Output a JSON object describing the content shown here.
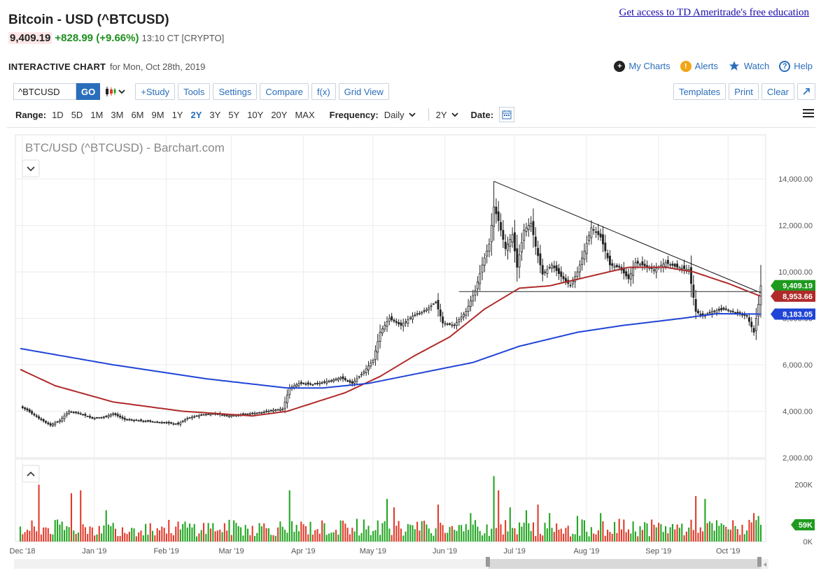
{
  "header": {
    "title": "Bitcoin - USD (^BTCUSD)",
    "promo_link": "Get access to TD Ameritrade's free education",
    "last": "9,409.19",
    "change": "+828.99 (+9.66%)",
    "time_meta": "13:10 CT [CRYPTO]",
    "chart_label": "INTERACTIVE CHART",
    "chart_date": "for Mon, Oct 28th, 2019"
  },
  "top_links": {
    "my_charts": "My Charts",
    "alerts": "Alerts",
    "watch": "Watch",
    "help": "Help"
  },
  "toolbar": {
    "symbol_value": "^BTCUSD",
    "go": "GO",
    "study": "+Study",
    "tools": "Tools",
    "settings": "Settings",
    "compare": "Compare",
    "fx": "f(x)",
    "grid_view": "Grid View",
    "templates": "Templates",
    "print": "Print",
    "clear": "Clear"
  },
  "range_bar": {
    "range_label": "Range:",
    "ranges": [
      "1D",
      "5D",
      "1M",
      "3M",
      "6M",
      "9M",
      "1Y",
      "2Y",
      "3Y",
      "5Y",
      "10Y",
      "20Y",
      "MAX"
    ],
    "active_range": "2Y",
    "frequency_label": "Frequency:",
    "frequency_value": "Daily",
    "period_value": "2Y",
    "date_label": "Date:"
  },
  "colors": {
    "up": "#22a522",
    "down": "#e03a2a",
    "ma_red": "#b02a2a",
    "ma_blue": "#1f45d6",
    "price_tag": "#1e9a1e",
    "link": "#2a6ebb"
  },
  "chart_data": {
    "type": "candlestick",
    "title": "BTC/USD (^BTCUSD) - Barchart.com",
    "x_labels": [
      "Dec '18",
      "Jan '19",
      "Feb '19",
      "Mar '19",
      "Apr '19",
      "May '19",
      "Jun '19",
      "Jul '19",
      "Aug '19",
      "Sep '19",
      "Oct '19"
    ],
    "y_ticks": [
      "14,000.00",
      "12,000.00",
      "10,000.00",
      "8,000.00",
      "6,000.00",
      "4,000.00",
      "2,000.00"
    ],
    "ylim": [
      2000,
      15900
    ],
    "price_path": [
      [
        0,
        4200
      ],
      [
        3,
        4050
      ],
      [
        8,
        3700
      ],
      [
        13,
        3400
      ],
      [
        17,
        3600
      ],
      [
        21,
        4000
      ],
      [
        26,
        3900
      ],
      [
        31,
        3700
      ],
      [
        36,
        3750
      ],
      [
        40,
        3900
      ],
      [
        45,
        3650
      ],
      [
        51,
        3600
      ],
      [
        57,
        3550
      ],
      [
        63,
        3500
      ],
      [
        68,
        3450
      ],
      [
        72,
        3700
      ],
      [
        78,
        3850
      ],
      [
        84,
        3900
      ],
      [
        89,
        3800
      ],
      [
        94,
        3850
      ],
      [
        99,
        3900
      ],
      [
        104,
        3950
      ],
      [
        109,
        4050
      ],
      [
        113,
        4100
      ],
      [
        116,
        5000
      ],
      [
        120,
        5200
      ],
      [
        126,
        5150
      ],
      [
        133,
        5300
      ],
      [
        138,
        5450
      ],
      [
        143,
        5200
      ],
      [
        148,
        5700
      ],
      [
        152,
        6200
      ],
      [
        155,
        7400
      ],
      [
        159,
        8000
      ],
      [
        164,
        7700
      ],
      [
        169,
        8100
      ],
      [
        174,
        8300
      ],
      [
        179,
        8700
      ],
      [
        182,
        7800
      ],
      [
        187,
        7700
      ],
      [
        192,
        8300
      ],
      [
        196,
        9200
      ],
      [
        199,
        10300
      ],
      [
        202,
        11200
      ],
      [
        204,
        12800
      ],
      [
        206,
        12200
      ],
      [
        209,
        11000
      ],
      [
        212,
        11600
      ],
      [
        214,
        10200
      ],
      [
        217,
        11800
      ],
      [
        220,
        12100
      ],
      [
        222,
        11100
      ],
      [
        225,
        9900
      ],
      [
        229,
        10300
      ],
      [
        233,
        9800
      ],
      [
        237,
        9400
      ],
      [
        240,
        10000
      ],
      [
        243,
        10900
      ],
      [
        246,
        11900
      ],
      [
        250,
        11500
      ],
      [
        254,
        10300
      ],
      [
        258,
        10200
      ],
      [
        262,
        9700
      ],
      [
        265,
        10400
      ],
      [
        268,
        10300
      ],
      [
        273,
        10100
      ],
      [
        278,
        10400
      ],
      [
        283,
        10200
      ],
      [
        288,
        10100
      ],
      [
        291,
        8300
      ],
      [
        294,
        8100
      ],
      [
        298,
        8300
      ],
      [
        304,
        8400
      ],
      [
        309,
        8200
      ],
      [
        313,
        8100
      ],
      [
        316,
        7400
      ],
      [
        318,
        8600
      ],
      [
        319,
        9400
      ]
    ],
    "red_ma_path": [
      [
        0,
        5800
      ],
      [
        15,
        5100
      ],
      [
        40,
        4400
      ],
      [
        70,
        4000
      ],
      [
        100,
        3800
      ],
      [
        115,
        4000
      ],
      [
        140,
        4800
      ],
      [
        155,
        5500
      ],
      [
        170,
        6400
      ],
      [
        185,
        7200
      ],
      [
        200,
        8400
      ],
      [
        215,
        9300
      ],
      [
        228,
        9400
      ],
      [
        245,
        9800
      ],
      [
        262,
        10200
      ],
      [
        278,
        10200
      ],
      [
        290,
        10000
      ],
      [
        305,
        9500
      ],
      [
        319,
        8950
      ]
    ],
    "blue_ma_path": [
      [
        0,
        6700
      ],
      [
        40,
        6000
      ],
      [
        80,
        5400
      ],
      [
        115,
        5000
      ],
      [
        130,
        5000
      ],
      [
        150,
        5200
      ],
      [
        175,
        5700
      ],
      [
        195,
        6100
      ],
      [
        215,
        6800
      ],
      [
        240,
        7400
      ],
      [
        260,
        7700
      ],
      [
        285,
        8000
      ],
      [
        300,
        8200
      ],
      [
        319,
        8183
      ]
    ],
    "trendline": [
      [
        204,
        13900
      ],
      [
        319,
        9100
      ]
    ],
    "support_level": 9150,
    "support_range": [
      189,
      319
    ],
    "tags": [
      {
        "label": "9,409.19",
        "value": 9409.19
      },
      {
        "label": "8,953.66",
        "value": 8953.66
      },
      {
        "label": "8,183.05",
        "value": 8183.05
      }
    ],
    "volume_ticks": [
      "200K",
      "0K"
    ],
    "volume_ylim": [
      0,
      280000
    ],
    "volume_last_label": "59K",
    "volume_last_value": 59000,
    "volume_spikes": [
      [
        8,
        200000
      ],
      [
        22,
        170000
      ],
      [
        26,
        180000
      ],
      [
        37,
        110000
      ],
      [
        116,
        180000
      ],
      [
        145,
        80000
      ],
      [
        158,
        150000
      ],
      [
        161,
        120000
      ],
      [
        180,
        130000
      ],
      [
        194,
        100000
      ],
      [
        204,
        230000
      ],
      [
        206,
        180000
      ],
      [
        211,
        120000
      ],
      [
        218,
        110000
      ],
      [
        223,
        130000
      ],
      [
        228,
        100000
      ],
      [
        240,
        90000
      ],
      [
        250,
        100000
      ],
      [
        258,
        80000
      ],
      [
        291,
        160000
      ],
      [
        295,
        150000
      ],
      [
        316,
        100000
      ],
      [
        318,
        90000
      ]
    ]
  }
}
